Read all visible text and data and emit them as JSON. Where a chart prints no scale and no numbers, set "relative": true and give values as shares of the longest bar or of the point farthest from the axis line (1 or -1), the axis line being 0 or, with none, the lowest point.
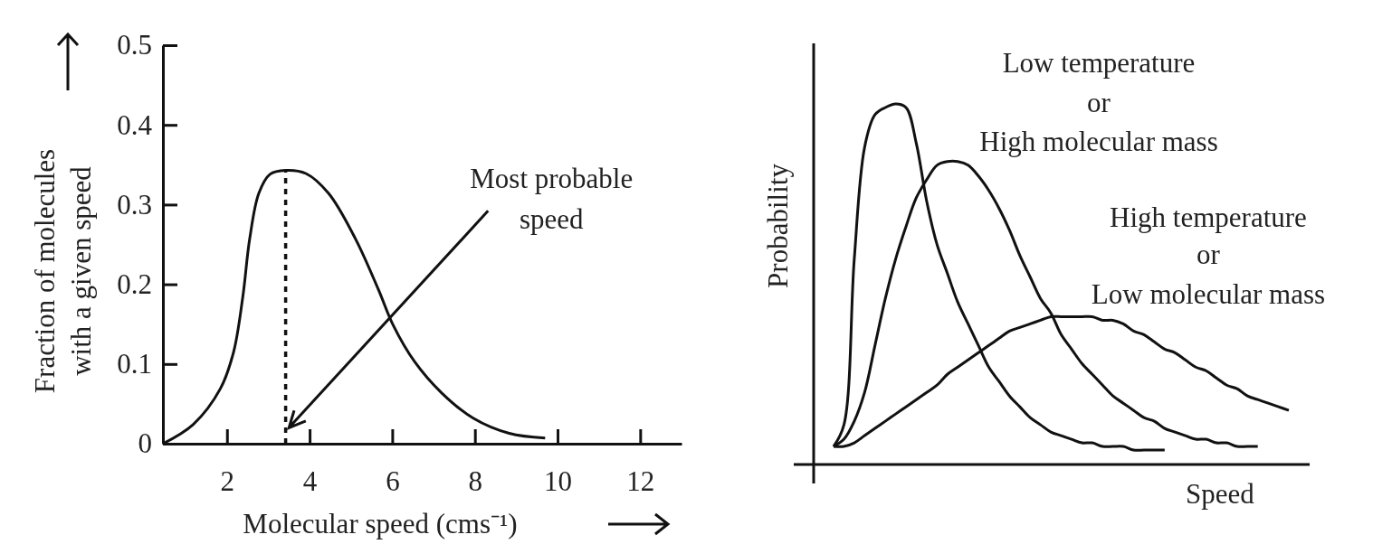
{
  "chart_data": [
    {
      "type": "line",
      "xlabel": "Molecular speed (cms⁻¹)",
      "ylabel": "Fraction of molecules\nwith a given speed",
      "xlim": [
        0.45,
        13
      ],
      "ylim": [
        0,
        0.5
      ],
      "xticks": [
        2,
        4,
        6,
        8,
        10,
        12
      ],
      "yticks": [
        0,
        0.1,
        0.2,
        0.3,
        0.4,
        0.5
      ],
      "x": [
        0.45,
        1.18,
        1.84,
        2.16,
        2.38,
        2.55,
        2.77,
        3.04,
        3.42,
        3.91,
        4.46,
        5.11,
        5.66,
        6.02,
        6.54,
        7.19,
        7.96,
        8.83,
        9.7
      ],
      "series": [
        {
          "color": "#111111",
          "values": [
            0,
            0.024,
            0.069,
            0.115,
            0.183,
            0.257,
            0.314,
            0.338,
            0.343,
            0.339,
            0.314,
            0.257,
            0.194,
            0.149,
            0.103,
            0.064,
            0.032,
            0.013,
            0.007
          ]
        }
      ],
      "ref_lines": [
        {
          "axis": "x",
          "value": 3.42,
          "line_style": "dotted",
          "color": "#111111"
        }
      ],
      "annotations": [
        {
          "text": "Most probable\nspeed",
          "x": 3.5,
          "y": 0.02
        }
      ]
    },
    {
      "type": "line",
      "relative": true,
      "xlabel": "Speed",
      "ylabel": "Probability",
      "categories": [
        null,
        null,
        null,
        null,
        null,
        null,
        null,
        null,
        null,
        null,
        null,
        null,
        null,
        null,
        null,
        null,
        null,
        null,
        null,
        null,
        null,
        null,
        null,
        null,
        null,
        null,
        null,
        null,
        null,
        null,
        null,
        null,
        null,
        null,
        null,
        null,
        null,
        null,
        null,
        null,
        null,
        null,
        null,
        null,
        null
      ],
      "series": [
        {
          "color": "#111111",
          "values": [
            0.05,
            0.11,
            0.57,
            0.88,
            0.97,
            0.99,
            1,
            0.99,
            0.89,
            0.73,
            0.61,
            0.53,
            0.45,
            0.39,
            0.33,
            0.27,
            0.23,
            0.19,
            0.16,
            0.13,
            0.11,
            0.09,
            0.08,
            0.07,
            0.06,
            0.06,
            0.05,
            0.05,
            0.05,
            0.04,
            0.04,
            0.04,
            0.04,
            null,
            null,
            null,
            null,
            null,
            null,
            null,
            null,
            null,
            null,
            null,
            null
          ]
        },
        {
          "color": "#111111",
          "values": [
            0.05,
            0.07,
            0.12,
            0.2,
            0.33,
            0.46,
            0.57,
            0.66,
            0.74,
            0.79,
            0.83,
            0.84,
            0.84,
            0.83,
            0.8,
            0.76,
            0.71,
            0.65,
            0.58,
            0.52,
            0.46,
            0.42,
            0.36,
            0.32,
            0.28,
            0.25,
            0.22,
            0.19,
            0.17,
            0.15,
            0.13,
            0.12,
            0.1,
            0.09,
            0.08,
            0.07,
            0.07,
            0.06,
            0.06,
            0.05,
            0.05,
            0.05,
            null,
            null,
            null
          ]
        },
        {
          "color": "#111111",
          "values": [
            0.05,
            0.05,
            0.06,
            0.08,
            0.1,
            0.12,
            0.14,
            0.16,
            0.18,
            0.2,
            0.22,
            0.25,
            0.27,
            0.29,
            0.31,
            0.33,
            0.35,
            0.37,
            0.38,
            0.39,
            0.4,
            0.41,
            0.41,
            0.41,
            0.41,
            0.41,
            0.4,
            0.4,
            0.39,
            0.37,
            0.36,
            0.34,
            0.32,
            0.31,
            0.29,
            0.27,
            0.26,
            0.24,
            0.22,
            0.21,
            0.19,
            0.18,
            0.17,
            0.16,
            0.15
          ]
        }
      ],
      "annotations": [
        "Low temperature\nor\nHigh molecular mass",
        "High temperature\nor\nLow molecular mass"
      ]
    }
  ]
}
